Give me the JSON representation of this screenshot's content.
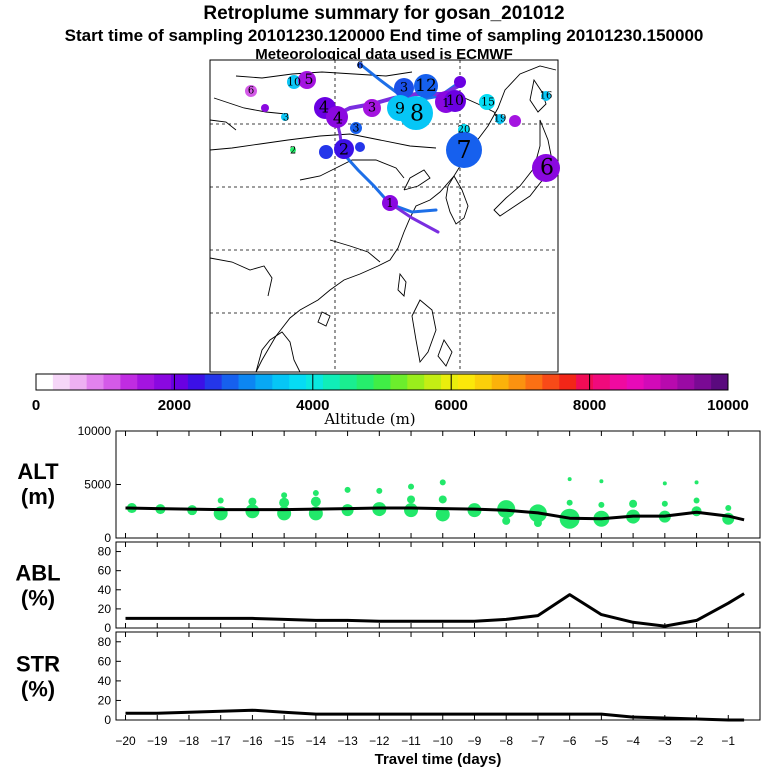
{
  "header": {
    "title": "Retroplume summary for gosan_201012",
    "sampling_line": "Start time of sampling 20101230.120000     End time of sampling 20101230.150000",
    "met_line": "Meteorological data used is ECMWF"
  },
  "colors": {
    "plume": "#7a2ee0",
    "traj": "#1d6fe8",
    "dots": "#22e86a",
    "line": "#000000"
  },
  "colorbar": {
    "label": "Altitude (m)",
    "ticks": [
      "0",
      "2000",
      "4000",
      "6000",
      "8000",
      "10000"
    ],
    "colors": [
      "#ffffff",
      "#f6d6f8",
      "#eeb0f2",
      "#e282ee",
      "#d45ae8",
      "#c02ce2",
      "#a414e0",
      "#8a08e0",
      "#6a00e2",
      "#3c10e6",
      "#2436ea",
      "#1660ee",
      "#0c86f2",
      "#08a8f4",
      "#06c6f6",
      "#06dcf4",
      "#0ae8e0",
      "#10eeb8",
      "#1aee90",
      "#26ee6c",
      "#40ee46",
      "#6cee2c",
      "#9aee1c",
      "#c4ee14",
      "#eaee0c",
      "#fce80a",
      "#fcd00a",
      "#fcb20a",
      "#fc9210",
      "#fc7014",
      "#f84a18",
      "#f22618",
      "#f00c56",
      "#f00a7c",
      "#f00aa0",
      "#e80ab8",
      "#d20ab8",
      "#b80aae",
      "#9a0aa4",
      "#7a0a94",
      "#5a0a7e"
    ]
  },
  "map": {
    "labels": [
      {
        "t": "6",
        "c": "#1a50e8"
      },
      {
        "t": "10",
        "c": "#0cc6f6"
      },
      {
        "t": "5",
        "c": "#a414e0"
      },
      {
        "t": "6",
        "c": "#d45ae8"
      },
      {
        "t": "4",
        "c": "#6a00e2"
      },
      {
        "t": "3",
        "c": "#1a50e8"
      },
      {
        "t": "4",
        "c": "#8a08e0"
      },
      {
        "t": "3",
        "c": "#8a08e0"
      },
      {
        "t": "3",
        "c": "#a414e0"
      },
      {
        "t": "7",
        "c": "#1a50e8"
      },
      {
        "t": "12",
        "c": "#1660ee"
      },
      {
        "t": "9",
        "c": "#06c6f6"
      },
      {
        "t": "8",
        "c": "#06c6f6"
      },
      {
        "t": "1",
        "c": "#8a08e0"
      },
      {
        "t": "10",
        "c": "#6a00e2"
      },
      {
        "t": "15",
        "c": "#06dcf4"
      },
      {
        "t": "16",
        "c": "#06c6f6"
      },
      {
        "t": "19",
        "c": "#06c6f6"
      },
      {
        "t": "3",
        "c": "#1660ee"
      },
      {
        "t": "2",
        "c": "#26ee6c"
      },
      {
        "t": "2",
        "c": "#3c10e6"
      },
      {
        "t": "20",
        "c": "#06dcf4"
      },
      {
        "t": "7",
        "c": "#1660ee"
      },
      {
        "t": "6",
        "c": "#8a08e0"
      },
      {
        "t": "1",
        "c": "#8a08e0"
      }
    ]
  },
  "chart_data": [
    {
      "type": "line",
      "name": "ALT",
      "ylabel": "ALT (m)",
      "ylabel_lines": [
        "ALT",
        "(m)"
      ],
      "x": [
        -20,
        -19,
        -18,
        -17,
        -16,
        -15,
        -14,
        -13,
        -12,
        -11,
        -10,
        -9,
        -8,
        -7,
        -6,
        -5,
        -4,
        -3,
        -2,
        -1,
        -0.5
      ],
      "values": [
        2800,
        2750,
        2700,
        2650,
        2650,
        2650,
        2700,
        2750,
        2800,
        2800,
        2750,
        2700,
        2600,
        2350,
        1850,
        1800,
        2050,
        2050,
        2400,
        2050,
        1700
      ],
      "ylim": [
        0,
        10000
      ],
      "yticks": [
        "0",
        "5000",
        "10000"
      ],
      "scatter_series": "dots",
      "dots": [
        [
          -19.8,
          2800,
          5
        ],
        [
          -18.9,
          2700,
          5
        ],
        [
          -17.9,
          2600,
          5
        ],
        [
          -17.0,
          2300,
          7
        ],
        [
          -17.0,
          3500,
          3
        ],
        [
          -16.0,
          2500,
          7
        ],
        [
          -16.0,
          3400,
          4
        ],
        [
          -15.0,
          2300,
          7
        ],
        [
          -15.0,
          3300,
          5
        ],
        [
          -15.0,
          4000,
          3
        ],
        [
          -14.0,
          2300,
          7
        ],
        [
          -14.0,
          3400,
          5
        ],
        [
          -14.0,
          4200,
          3
        ],
        [
          -13.0,
          2600,
          6
        ],
        [
          -13.0,
          4500,
          3
        ],
        [
          -12.0,
          2700,
          7
        ],
        [
          -12.0,
          4400,
          3
        ],
        [
          -11.0,
          2600,
          7
        ],
        [
          -11.0,
          3600,
          4
        ],
        [
          -11.0,
          4800,
          3
        ],
        [
          -10.0,
          2200,
          7
        ],
        [
          -10.0,
          3600,
          4
        ],
        [
          -10.0,
          5200,
          3
        ],
        [
          -9.0,
          2600,
          7
        ],
        [
          -8.0,
          2700,
          9
        ],
        [
          -8.0,
          1600,
          4
        ],
        [
          -7.0,
          2300,
          9
        ],
        [
          -7.0,
          1400,
          4
        ],
        [
          -6.0,
          1800,
          10
        ],
        [
          -6.0,
          3300,
          3
        ],
        [
          -6.0,
          5500,
          2
        ],
        [
          -5.0,
          1800,
          8
        ],
        [
          -5.0,
          3100,
          3
        ],
        [
          -5.0,
          5300,
          2
        ],
        [
          -4.0,
          2000,
          7
        ],
        [
          -4.0,
          3200,
          4
        ],
        [
          -3.0,
          2000,
          6
        ],
        [
          -3.0,
          3200,
          3
        ],
        [
          -3.0,
          5100,
          2
        ],
        [
          -2.0,
          2500,
          5
        ],
        [
          -2.0,
          3500,
          3
        ],
        [
          -2.0,
          5200,
          2
        ],
        [
          -1.0,
          1800,
          6
        ],
        [
          -1.0,
          2800,
          3
        ]
      ]
    },
    {
      "type": "line",
      "name": "ABL",
      "ylabel": "ABL (%)",
      "ylabel_lines": [
        "ABL",
        "(%)"
      ],
      "x": [
        -20,
        -19,
        -18,
        -17,
        -16,
        -15,
        -14,
        -13,
        -12,
        -11,
        -10,
        -9,
        -8,
        -7,
        -6,
        -5,
        -4,
        -3,
        -2,
        -1,
        -0.5
      ],
      "values": [
        10,
        10,
        10,
        10,
        10,
        9,
        8,
        8,
        7,
        7,
        7,
        7,
        9,
        13,
        35,
        14,
        6,
        2,
        8,
        26,
        36
      ],
      "ylim": [
        0,
        90
      ],
      "yticks": [
        "0",
        "20",
        "40",
        "60",
        "80"
      ]
    },
    {
      "type": "line",
      "name": "STR",
      "ylabel": "STR (%)",
      "ylabel_lines": [
        "STR",
        "(%)"
      ],
      "x": [
        -20,
        -19,
        -18,
        -17,
        -16,
        -15,
        -14,
        -13,
        -12,
        -11,
        -10,
        -9,
        -8,
        -7,
        -6,
        -5,
        -4,
        -3,
        -2,
        -1,
        -0.5
      ],
      "values": [
        7,
        7,
        8,
        9,
        10,
        8,
        6,
        6,
        6,
        6,
        6,
        6,
        6,
        6,
        6,
        6,
        3,
        2,
        1,
        0,
        0
      ],
      "ylim": [
        0,
        90
      ],
      "yticks": [
        "0",
        "20",
        "40",
        "60",
        "80"
      ]
    }
  ],
  "xaxis": {
    "label": "Travel time (days)",
    "ticks": [
      "−20",
      "−19",
      "−18",
      "−17",
      "−16",
      "−15",
      "−14",
      "−13",
      "−12",
      "−11",
      "−10",
      "−9",
      "−8",
      "−7",
      "−6",
      "−5",
      "−4",
      "−3",
      "−2",
      "−1"
    ],
    "range": [
      -20.3,
      0
    ]
  }
}
